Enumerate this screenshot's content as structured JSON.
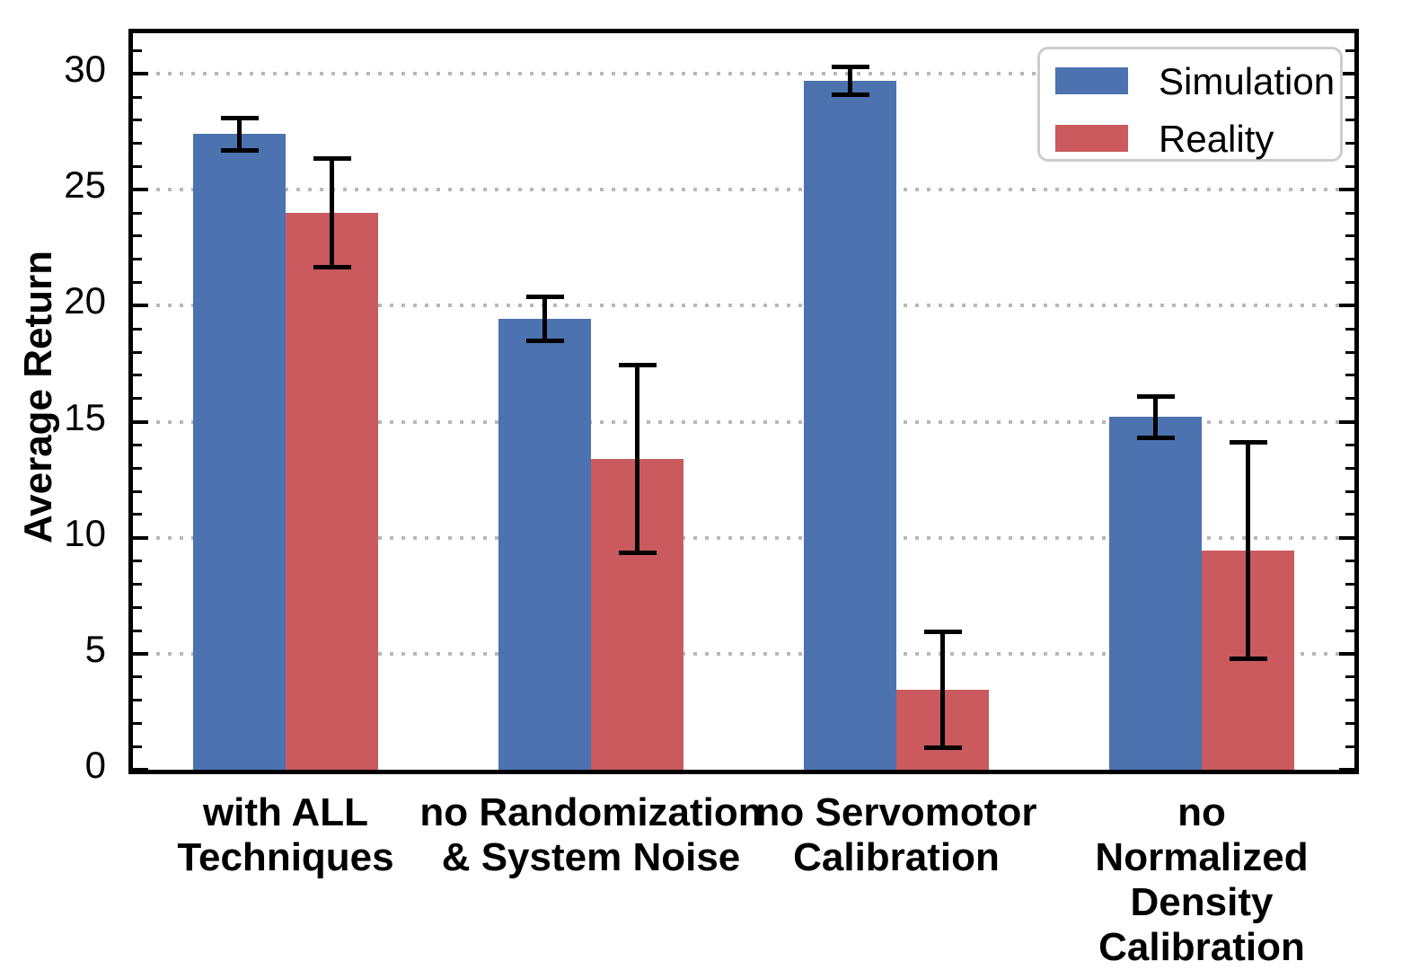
{
  "figure": {
    "background": "#ffffff",
    "spine_color": "#000000",
    "gridline_color": "#b8b8b8"
  },
  "chart_data": {
    "type": "bar",
    "title": "",
    "xlabel": "",
    "ylabel": "Average Return",
    "categories": [
      [
        "with ALL",
        "Techniques"
      ],
      [
        "no Randomization",
        "& System Noise"
      ],
      [
        "no Servomotor",
        "Calibration"
      ],
      [
        "no Normalized",
        "Density Calibration"
      ]
    ],
    "series": [
      {
        "name": "Simulation",
        "color": "#4C72B0",
        "values": [
          27.4,
          19.45,
          29.7,
          15.2
        ],
        "errors": [
          0.7,
          0.95,
          0.6,
          0.9
        ]
      },
      {
        "name": "Reality",
        "color": "#CA5A5E",
        "values": [
          24.0,
          13.4,
          3.45,
          9.45
        ],
        "errors": [
          2.35,
          4.05,
          2.5,
          4.65
        ]
      }
    ],
    "ylim": [
      0,
      31.75
    ],
    "yticks": [
      0,
      5,
      10,
      15,
      20,
      25,
      30
    ],
    "minor_tick_step": 1,
    "grid": {
      "axis": "y",
      "style": "dotted",
      "at_major_ticks": true
    },
    "error_bar_color": "#000000",
    "legend": {
      "position": "upper right",
      "entries": [
        "Simulation",
        "Reality"
      ]
    }
  }
}
